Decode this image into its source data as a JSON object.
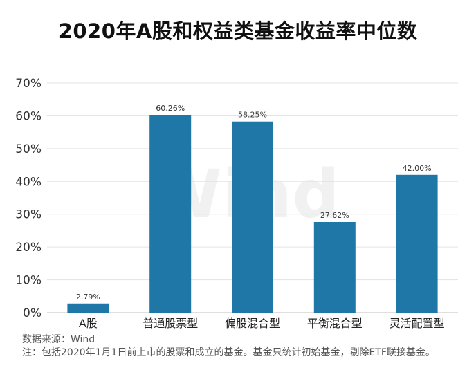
{
  "chart_data": {
    "type": "bar",
    "title": "2020年A股和权益类基金收益率中位数",
    "categories": [
      "A股",
      "普通股票型",
      "偏股混合型",
      "平衡混合型",
      "灵活配置型"
    ],
    "values": [
      2.79,
      60.26,
      58.25,
      27.62,
      42.0
    ],
    "value_labels": [
      "2.79%",
      "60.26%",
      "58.25%",
      "27.62%",
      "42.00%"
    ],
    "ylim": [
      0,
      70
    ],
    "yticks": [
      "0%",
      "10%",
      "20%",
      "30%",
      "40%",
      "50%",
      "60%",
      "70%"
    ],
    "ytick_values": [
      0,
      10,
      20,
      30,
      40,
      50,
      60,
      70
    ],
    "xlabel": "",
    "ylabel": "",
    "grid": true,
    "bar_color": "#1f77a8",
    "watermark": "Wind"
  },
  "footer": {
    "source": "数据来源：Wind",
    "note": "注：包括2020年1月1日前上市的股票和成立的基金。基金只统计初始基金，剔除ETF联接基金。"
  }
}
